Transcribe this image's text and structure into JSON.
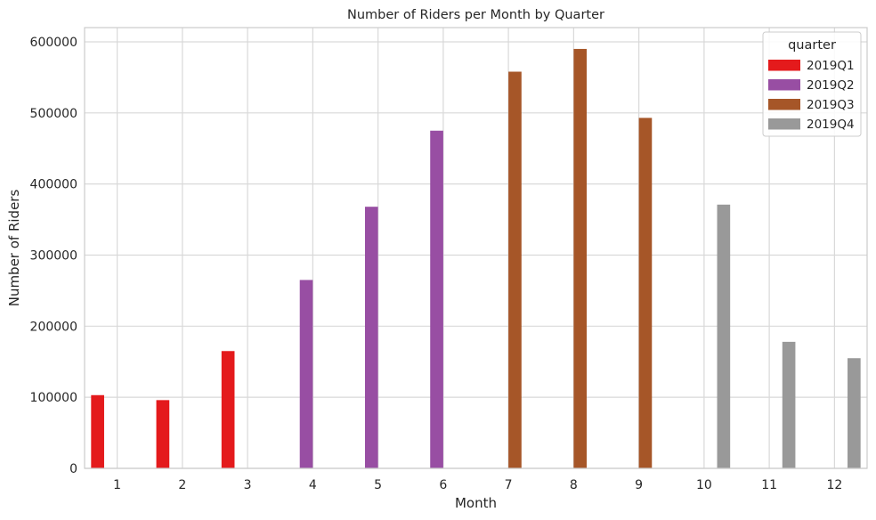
{
  "chart_data": {
    "type": "bar",
    "title": "Number of Riders per Month by Quarter",
    "xlabel": "Month",
    "ylabel": "Number of Riders",
    "categories": [
      "1",
      "2",
      "3",
      "4",
      "5",
      "6",
      "7",
      "8",
      "9",
      "10",
      "11",
      "12"
    ],
    "ylim": [
      0,
      620000
    ],
    "yticks": [
      0,
      100000,
      200000,
      300000,
      400000,
      500000,
      600000
    ],
    "grid": true,
    "legend": {
      "title": "quarter",
      "placement": "top-right"
    },
    "series": [
      {
        "name": "2019Q1",
        "color": "#e41a1c",
        "values": [
          103000,
          96000,
          165000,
          null,
          null,
          null,
          null,
          null,
          null,
          null,
          null,
          null
        ]
      },
      {
        "name": "2019Q2",
        "color": "#984ea3",
        "values": [
          null,
          null,
          null,
          265000,
          368000,
          475000,
          null,
          null,
          null,
          null,
          null,
          null
        ]
      },
      {
        "name": "2019Q3",
        "color": "#a65628",
        "values": [
          null,
          null,
          null,
          null,
          null,
          null,
          558000,
          590000,
          493000,
          null,
          null,
          null
        ]
      },
      {
        "name": "2019Q4",
        "color": "#999999",
        "values": [
          null,
          null,
          null,
          null,
          null,
          null,
          null,
          null,
          null,
          371000,
          178000,
          155000
        ]
      }
    ]
  }
}
